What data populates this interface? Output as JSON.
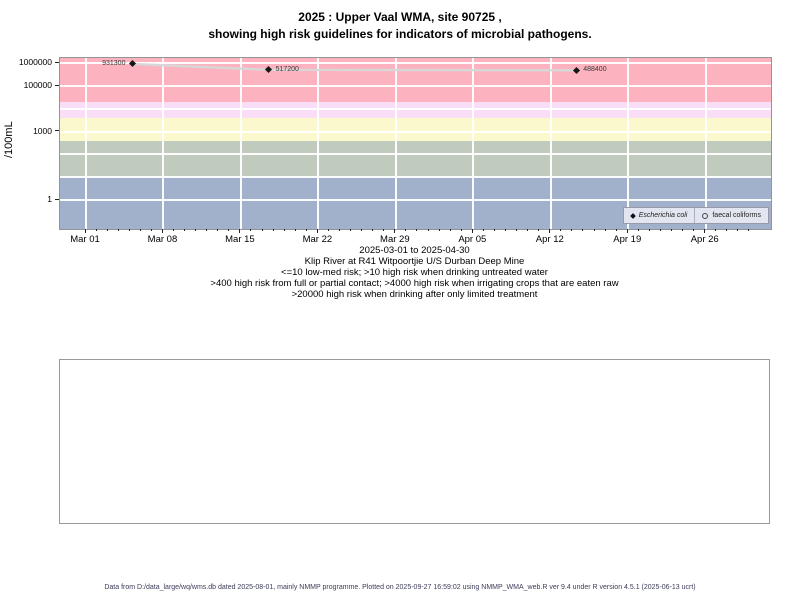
{
  "title": {
    "line1": "2025 : Upper Vaal WMA, site 90725 ,",
    "line2": "showing high risk guidelines for indicators of microbial pathogens."
  },
  "chart_data": {
    "type": "scatter",
    "title": "2025 : Upper Vaal WMA, site 90725 , showing high risk guidelines for indicators of microbial pathogens.",
    "ylabel": "/100mL",
    "y_scale": "log10",
    "ylog_range": [
      -1.27,
      6.23
    ],
    "x_day_range": [
      -2.35,
      61.9
    ],
    "x_range_label": "2025-03-01 to 2025-04-30",
    "grid": "white-major-gridlines",
    "legend_position": "bottom-right-inside",
    "x_ticks": [
      {
        "label": "Mar 01",
        "day": 0
      },
      {
        "label": "Mar 08",
        "day": 7
      },
      {
        "label": "Mar 15",
        "day": 14
      },
      {
        "label": "Mar 22",
        "day": 21
      },
      {
        "label": "Mar 29",
        "day": 28
      },
      {
        "label": "Apr 05",
        "day": 35
      },
      {
        "label": "Apr 12",
        "day": 42
      },
      {
        "label": "Apr 19",
        "day": 49
      },
      {
        "label": "Apr 26",
        "day": 56
      }
    ],
    "x_minor_tick_days": {
      "from": 0,
      "to": 60,
      "step": 1
    },
    "y_ticks": [
      {
        "label": "1000000",
        "value": 1000000
      },
      {
        "label": "100000",
        "value": 100000
      },
      {
        "label": "1000",
        "value": 1000
      },
      {
        "label": "1",
        "value": 1
      }
    ],
    "y_gridline_values": [
      1,
      10,
      100,
      1000,
      10000,
      100000,
      1000000
    ],
    "risk_bands": [
      {
        "range": ">20000",
        "min": 20000,
        "max": null,
        "color": "#FCB2BF"
      },
      {
        "range": "4000-20000",
        "min": 4000,
        "max": 20000,
        "color": "#FADDF6"
      },
      {
        "range": "400-4000",
        "min": 400,
        "max": 4000,
        "color": "#FBF8CD"
      },
      {
        "range": "10-400",
        "min": 10,
        "max": 400,
        "color": "#C1CBBD"
      },
      {
        "range": "<=10",
        "min": null,
        "max": 10,
        "color": "#A1B1CB"
      }
    ],
    "series": [
      {
        "name": "Escherichia coli",
        "marker": "filled-diamond",
        "line_color": "#D7D7D7",
        "points": [
          {
            "value": 931300,
            "label": "931300",
            "day": 4.2,
            "label_side": "left"
          },
          {
            "value": 517200,
            "label": "517200",
            "day": 16.5,
            "label_side": "right"
          },
          {
            "value": 488400,
            "label": "488400",
            "day": 44.3,
            "label_side": "right"
          }
        ]
      },
      {
        "name": "faecal coliforms",
        "marker": "open-circle",
        "points": []
      }
    ],
    "legend": [
      {
        "label": "Escherichia coli",
        "marker": "filled-diamond"
      },
      {
        "label": "faecal coliforms",
        "marker": "open-circle"
      }
    ]
  },
  "captions": {
    "site": "Klip River at R41 Witpoortjie U/S Durban Deep Mine",
    "guidelines": [
      "<=10 low-med risk; >10 high risk when drinking untreated water",
      ">400 high risk from full or partial contact; >4000 high risk when irrigating crops that are eaten raw",
      ">20000 high risk when drinking after only limited treatment"
    ]
  },
  "footer": {
    "text": "Data from D:/data_large/wq/wms.db dated 2025-08-01, mainly NMMP programme. Plotted on 2025-09-27 16:59:02 using NMMP_WMA_web.R ver 9.4 under R version 4.5.1 (2025-06-13 ucrt)"
  }
}
